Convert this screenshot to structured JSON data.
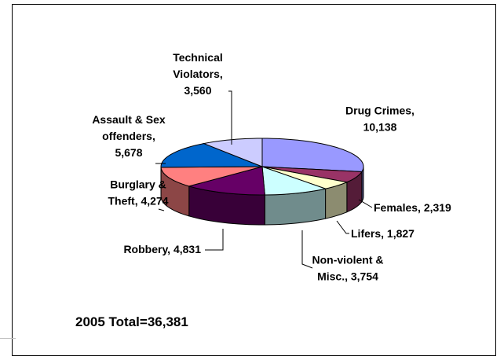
{
  "chart_data": {
    "type": "pie",
    "title": "",
    "subtitle": "",
    "categories": [
      "Drug Crimes",
      "Females",
      "Lifers",
      "Non-violent & Misc.",
      "Robbery",
      "Burglary & Theft",
      "Assault & Sex offenders",
      "Technical Violators"
    ],
    "values": [
      10138,
      2319,
      1827,
      3754,
      4831,
      4274,
      5678,
      3560
    ],
    "colors": [
      "#9999ff",
      "#993366",
      "#ffffcc",
      "#ccffff",
      "#660066",
      "#ff8080",
      "#0066cc",
      "#ccccff"
    ],
    "labels": [
      [
        "Drug Crimes,",
        "10,138"
      ],
      [
        "Females, 2,319"
      ],
      [
        "Lifers, 1,827"
      ],
      [
        "Non-violent &",
        "Misc., 3,754"
      ],
      [
        "Robbery, 4,831"
      ],
      [
        "Burglary &",
        "Theft, 4,274"
      ],
      [
        "Assault & Sex",
        "offenders,",
        "5,678"
      ],
      [
        "Technical",
        "Violators,",
        "3,560"
      ]
    ],
    "annotation": "2005 Total=36,381"
  }
}
